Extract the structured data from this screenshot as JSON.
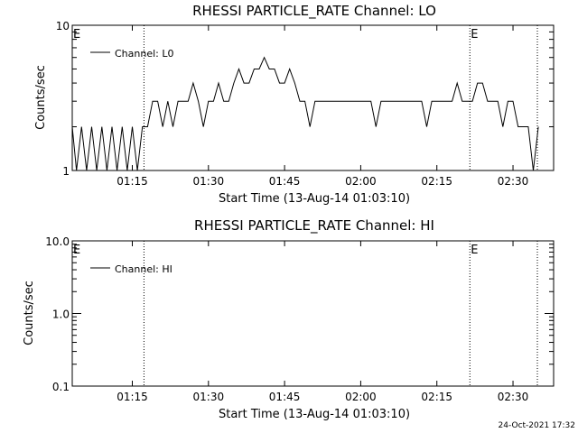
{
  "footer": {
    "timestamp": "24-Oct-2021 17:32"
  },
  "chart_data": [
    {
      "type": "line",
      "title": "RHESSI PARTICLE_RATE Channel: LO",
      "xlabel": "Start Time (13-Aug-14 01:03:10)",
      "ylabel": "Counts/sec",
      "yscale": "log",
      "ylim": [
        1,
        10
      ],
      "xlim_minutes": [
        3.17,
        98
      ],
      "ytick_labels": [
        "1",
        "10"
      ],
      "xtick_labels": [
        "01:15",
        "01:30",
        "01:45",
        "02:00",
        "02:15",
        "02:30"
      ],
      "xtick_minutes": [
        15,
        30,
        45,
        60,
        75,
        90
      ],
      "markers": [
        {
          "label": "E",
          "minute": 3.17
        },
        {
          "label": "E",
          "minute": 81.5
        }
      ],
      "vlines_minutes": [
        17.3,
        81.5,
        94.8
      ],
      "legend": {
        "position": "top-left",
        "entry": "Channel: L0"
      },
      "series": [
        {
          "name": "Channel: L0",
          "x": [
            3,
            4,
            5,
            6,
            7,
            8,
            9,
            10,
            11,
            12,
            13,
            14,
            15,
            16,
            17,
            18,
            19,
            20,
            21,
            22,
            23,
            24,
            25,
            26,
            27,
            28,
            29,
            30,
            31,
            32,
            33,
            34,
            35,
            36,
            37,
            38,
            39,
            40,
            41,
            42,
            43,
            44,
            45,
            46,
            47,
            48,
            49,
            50,
            51,
            52,
            53,
            54,
            55,
            56,
            57,
            58,
            59,
            60,
            61,
            62,
            63,
            64,
            65,
            66,
            67,
            68,
            69,
            70,
            71,
            72,
            73,
            74,
            75,
            76,
            77,
            78,
            79,
            80,
            81,
            82,
            83,
            84,
            85,
            86,
            87,
            88,
            89,
            90,
            91,
            92,
            93,
            94,
            95
          ],
          "y": [
            2,
            1,
            2,
            1,
            2,
            1,
            2,
            1,
            2,
            1,
            2,
            1,
            2,
            1,
            2,
            2,
            3,
            3,
            2,
            3,
            2,
            3,
            3,
            3,
            4,
            3,
            2,
            3,
            3,
            4,
            3,
            3,
            4,
            5,
            4,
            4,
            5,
            5,
            6,
            5,
            5,
            4,
            4,
            5,
            4,
            3,
            3,
            2,
            3,
            3,
            3,
            3,
            3,
            3,
            3,
            3,
            3,
            3,
            3,
            3,
            2,
            3,
            3,
            3,
            3,
            3,
            3,
            3,
            3,
            3,
            2,
            3,
            3,
            3,
            3,
            3,
            4,
            3,
            3,
            3,
            4,
            4,
            3,
            3,
            3,
            2,
            3,
            3,
            2,
            2,
            2,
            1,
            2
          ]
        }
      ]
    },
    {
      "type": "line",
      "title": "RHESSI PARTICLE_RATE Channel: HI",
      "xlabel": "Start Time (13-Aug-14 01:03:10)",
      "ylabel": "Counts/sec",
      "yscale": "log",
      "ylim": [
        0.1,
        10
      ],
      "xlim_minutes": [
        3.17,
        98
      ],
      "ytick_labels": [
        "0.1",
        "1.0",
        "10.0"
      ],
      "xtick_labels": [
        "01:15",
        "01:30",
        "01:45",
        "02:00",
        "02:15",
        "02:30"
      ],
      "xtick_minutes": [
        15,
        30,
        45,
        60,
        75,
        90
      ],
      "markers": [
        {
          "label": "E",
          "minute": 3.17
        },
        {
          "label": "E",
          "minute": 81.5
        }
      ],
      "vlines_minutes": [
        17.3,
        81.5,
        94.8
      ],
      "legend": {
        "position": "top-left",
        "entry": "Channel: HI"
      },
      "series": [
        {
          "name": "Channel: HI",
          "x": [],
          "y": []
        }
      ]
    }
  ]
}
